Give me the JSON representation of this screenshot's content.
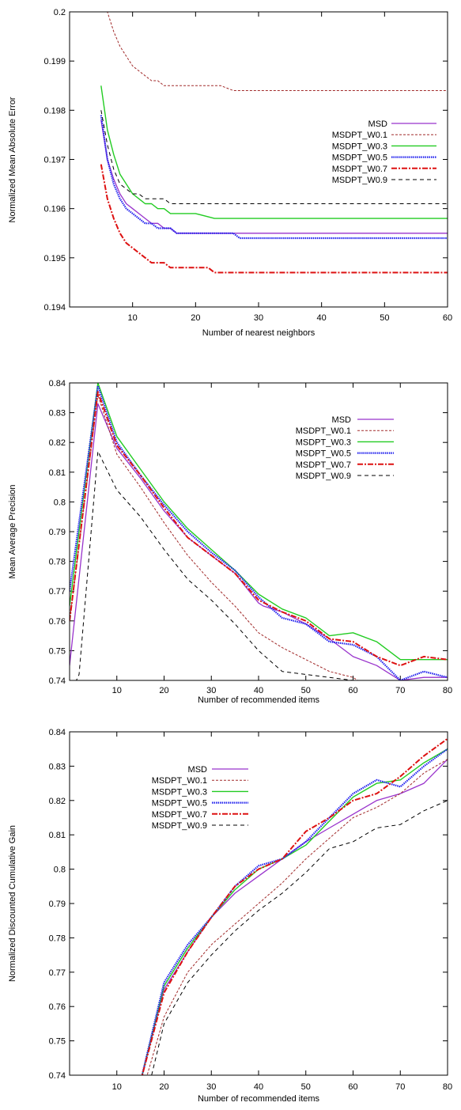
{
  "colors": {
    "MSD": "#9933cc",
    "MSDPT_W0.1": "#a12a2a",
    "MSDPT_W0.3": "#22cc22",
    "MSDPT_W0.5": "#2222ee",
    "MSDPT_W0.7": "#dd1111",
    "MSDPT_W0.9": "#000000"
  },
  "chart_data": [
    {
      "type": "line",
      "title": "",
      "xlabel": "Number of nearest neighbors",
      "ylabel": "Normalized Mean Absolute Error",
      "xlim": [
        0,
        60
      ],
      "ylim": [
        0.194,
        0.2
      ],
      "xticks": [
        10,
        20,
        30,
        40,
        50,
        60
      ],
      "yticks": [
        0.194,
        0.195,
        0.196,
        0.197,
        0.198,
        0.199,
        0.2
      ],
      "ytick_labels": [
        "0.194",
        "0.195",
        "0.196",
        "0.197",
        "0.198",
        "0.199",
        "0.2"
      ],
      "legend_position": "right",
      "series": [
        {
          "name": "MSD",
          "x": [
            5,
            6,
            7,
            8,
            9,
            10,
            11,
            12,
            13,
            14,
            15,
            16,
            17,
            20,
            26,
            30,
            40,
            50,
            60
          ],
          "values": [
            0.1978,
            0.197,
            0.1966,
            0.1963,
            0.1961,
            0.196,
            0.1959,
            0.1958,
            0.1957,
            0.1957,
            0.1956,
            0.1956,
            0.1955,
            0.1955,
            0.1955,
            0.1955,
            0.1955,
            0.1955,
            0.1955
          ]
        },
        {
          "name": "MSDPT_W0.1",
          "x": [
            5,
            6,
            7,
            8,
            9,
            10,
            11,
            12,
            13,
            14,
            15,
            16,
            18,
            20,
            24,
            26,
            30,
            40,
            50,
            60
          ],
          "values": [
            0.2004,
            0.2,
            0.1996,
            0.1993,
            0.1991,
            0.1989,
            0.1988,
            0.1987,
            0.1986,
            0.1986,
            0.1985,
            0.1985,
            0.1985,
            0.1985,
            0.1985,
            0.1984,
            0.1984,
            0.1984,
            0.1984,
            0.1984
          ]
        },
        {
          "name": "MSDPT_W0.3",
          "x": [
            5,
            6,
            7,
            8,
            9,
            10,
            11,
            12,
            13,
            14,
            15,
            16,
            17,
            20,
            23,
            26,
            30,
            40,
            50,
            60
          ],
          "values": [
            0.1985,
            0.1976,
            0.1971,
            0.1967,
            0.1965,
            0.1963,
            0.1962,
            0.1961,
            0.1961,
            0.196,
            0.196,
            0.1959,
            0.1959,
            0.1959,
            0.1958,
            0.1958,
            0.1958,
            0.1958,
            0.1958,
            0.1958
          ]
        },
        {
          "name": "MSDPT_W0.5",
          "x": [
            5,
            6,
            7,
            8,
            9,
            10,
            11,
            12,
            13,
            14,
            15,
            16,
            17,
            20,
            26,
            27,
            30,
            40,
            50,
            60
          ],
          "values": [
            0.1979,
            0.197,
            0.1965,
            0.1962,
            0.196,
            0.1959,
            0.1958,
            0.1957,
            0.1957,
            0.1956,
            0.1956,
            0.1956,
            0.1955,
            0.1955,
            0.1955,
            0.1954,
            0.1954,
            0.1954,
            0.1954,
            0.1954
          ]
        },
        {
          "name": "MSDPT_W0.7",
          "x": [
            5,
            6,
            7,
            8,
            9,
            10,
            11,
            12,
            13,
            14,
            15,
            16,
            18,
            20,
            22,
            23,
            30,
            40,
            50,
            60
          ],
          "values": [
            0.1969,
            0.1962,
            0.1958,
            0.1955,
            0.1953,
            0.1952,
            0.1951,
            0.195,
            0.1949,
            0.1949,
            0.1949,
            0.1948,
            0.1948,
            0.1948,
            0.1948,
            0.1947,
            0.1947,
            0.1947,
            0.1947,
            0.1947
          ]
        },
        {
          "name": "MSDPT_W0.9",
          "x": [
            5,
            6,
            7,
            8,
            9,
            10,
            11,
            12,
            13,
            14,
            15,
            16,
            20,
            30,
            40,
            50,
            60
          ],
          "values": [
            0.198,
            0.1973,
            0.1968,
            0.1965,
            0.1964,
            0.1963,
            0.1963,
            0.1962,
            0.1962,
            0.1962,
            0.1962,
            0.1961,
            0.1961,
            0.1961,
            0.1961,
            0.1961,
            0.1961
          ]
        }
      ]
    },
    {
      "type": "line",
      "title": "",
      "xlabel": "Number of recommended items",
      "ylabel": "Mean Average Precision",
      "xlim": [
        0,
        80
      ],
      "ylim": [
        0.74,
        0.84
      ],
      "xticks": [
        10,
        20,
        30,
        40,
        50,
        60,
        70,
        80
      ],
      "yticks": [
        0.74,
        0.75,
        0.76,
        0.77,
        0.78,
        0.79,
        0.8,
        0.81,
        0.82,
        0.83,
        0.84
      ],
      "ytick_labels": [
        "0.74",
        "0.75",
        "0.76",
        "0.77",
        "0.78",
        "0.79",
        "0.8",
        "0.81",
        "0.82",
        "0.83",
        "0.84"
      ],
      "legend_position": "top-right",
      "series": [
        {
          "name": "MSD",
          "x": [
            0,
            6,
            10,
            15,
            20,
            25,
            30,
            35,
            40,
            41,
            45,
            50,
            55,
            60,
            65,
            70,
            75,
            80
          ],
          "values": [
            0.745,
            0.833,
            0.818,
            0.808,
            0.797,
            0.788,
            0.782,
            0.776,
            0.766,
            0.765,
            0.763,
            0.759,
            0.754,
            0.748,
            0.745,
            0.74,
            0.741,
            0.741
          ]
        },
        {
          "name": "MSDPT_W0.1",
          "x": [
            0,
            6,
            10,
            15,
            20,
            25,
            30,
            35,
            40,
            45,
            50,
            55,
            60,
            62
          ],
          "values": [
            0.76,
            0.836,
            0.816,
            0.805,
            0.793,
            0.782,
            0.773,
            0.765,
            0.756,
            0.751,
            0.747,
            0.743,
            0.741,
            0.739
          ]
        },
        {
          "name": "MSDPT_W0.3",
          "x": [
            0,
            6,
            10,
            15,
            20,
            25,
            30,
            35,
            40,
            45,
            50,
            55,
            60,
            65,
            70,
            75,
            80
          ],
          "values": [
            0.765,
            0.84,
            0.822,
            0.811,
            0.8,
            0.791,
            0.784,
            0.777,
            0.769,
            0.764,
            0.761,
            0.755,
            0.756,
            0.753,
            0.747,
            0.747,
            0.747
          ]
        },
        {
          "name": "MSDPT_W0.5",
          "x": [
            0,
            6,
            10,
            15,
            20,
            25,
            30,
            35,
            40,
            45,
            50,
            55,
            60,
            65,
            70,
            75,
            80
          ],
          "values": [
            0.77,
            0.839,
            0.82,
            0.809,
            0.799,
            0.79,
            0.783,
            0.777,
            0.768,
            0.761,
            0.759,
            0.753,
            0.752,
            0.748,
            0.74,
            0.743,
            0.741
          ]
        },
        {
          "name": "MSDPT_W0.7",
          "x": [
            0,
            6,
            10,
            15,
            20,
            25,
            30,
            35,
            40,
            45,
            50,
            55,
            60,
            65,
            70,
            75,
            80
          ],
          "values": [
            0.76,
            0.837,
            0.819,
            0.809,
            0.798,
            0.788,
            0.782,
            0.776,
            0.767,
            0.763,
            0.76,
            0.754,
            0.753,
            0.748,
            0.745,
            0.748,
            0.747
          ]
        },
        {
          "name": "MSDPT_W0.9",
          "x": [
            0,
            2,
            6,
            10,
            15,
            20,
            25,
            30,
            35,
            40,
            45,
            50,
            55,
            60
          ],
          "values": [
            0.735,
            0.742,
            0.817,
            0.804,
            0.795,
            0.784,
            0.774,
            0.767,
            0.759,
            0.75,
            0.743,
            0.742,
            0.741,
            0.74
          ]
        }
      ]
    },
    {
      "type": "line",
      "title": "",
      "xlabel": "Number of recommended items",
      "ylabel": "Normalized Discounted Cumulative Gain",
      "xlim": [
        0,
        80
      ],
      "ylim": [
        0.74,
        0.84
      ],
      "xticks": [
        10,
        20,
        30,
        40,
        50,
        60,
        70,
        80
      ],
      "yticks": [
        0.74,
        0.75,
        0.76,
        0.77,
        0.78,
        0.79,
        0.8,
        0.81,
        0.82,
        0.83,
        0.84
      ],
      "ytick_labels": [
        "0.74",
        "0.75",
        "0.76",
        "0.77",
        "0.78",
        "0.79",
        "0.8",
        "0.81",
        "0.82",
        "0.83",
        "0.84"
      ],
      "legend_position": "top-left",
      "series": [
        {
          "name": "MSD",
          "x": [
            15,
            20,
            25,
            30,
            35,
            40,
            45,
            50,
            55,
            60,
            65,
            70,
            75,
            80
          ],
          "values": [
            0.738,
            0.765,
            0.776,
            0.786,
            0.793,
            0.798,
            0.803,
            0.808,
            0.812,
            0.816,
            0.82,
            0.822,
            0.825,
            0.832
          ]
        },
        {
          "name": "MSDPT_W0.1",
          "x": [
            16,
            20,
            25,
            30,
            35,
            40,
            45,
            50,
            55,
            60,
            65,
            70,
            75,
            80
          ],
          "values": [
            0.738,
            0.757,
            0.77,
            0.778,
            0.784,
            0.79,
            0.796,
            0.803,
            0.809,
            0.815,
            0.818,
            0.822,
            0.828,
            0.832
          ]
        },
        {
          "name": "MSDPT_W0.3",
          "x": [
            15,
            20,
            25,
            30,
            35,
            40,
            45,
            50,
            55,
            60,
            65,
            70,
            75,
            80
          ],
          "values": [
            0.738,
            0.766,
            0.777,
            0.786,
            0.794,
            0.8,
            0.803,
            0.807,
            0.814,
            0.821,
            0.825,
            0.826,
            0.831,
            0.835
          ]
        },
        {
          "name": "MSDPT_W0.5",
          "x": [
            15,
            20,
            25,
            30,
            35,
            40,
            45,
            50,
            55,
            60,
            65,
            70,
            75,
            80
          ],
          "values": [
            0.738,
            0.767,
            0.778,
            0.786,
            0.795,
            0.801,
            0.803,
            0.808,
            0.815,
            0.822,
            0.826,
            0.824,
            0.83,
            0.835
          ]
        },
        {
          "name": "MSDPT_W0.7",
          "x": [
            15,
            20,
            25,
            30,
            35,
            40,
            45,
            50,
            55,
            60,
            65,
            70,
            75,
            80
          ],
          "values": [
            0.738,
            0.764,
            0.776,
            0.786,
            0.795,
            0.8,
            0.803,
            0.811,
            0.815,
            0.82,
            0.822,
            0.827,
            0.833,
            0.838
          ]
        },
        {
          "name": "MSDPT_W0.9",
          "x": [
            17,
            20,
            25,
            30,
            35,
            40,
            45,
            50,
            55,
            60,
            65,
            70,
            75,
            80
          ],
          "values": [
            0.738,
            0.755,
            0.767,
            0.775,
            0.782,
            0.788,
            0.793,
            0.799,
            0.806,
            0.808,
            0.812,
            0.813,
            0.817,
            0.82
          ]
        }
      ]
    }
  ]
}
